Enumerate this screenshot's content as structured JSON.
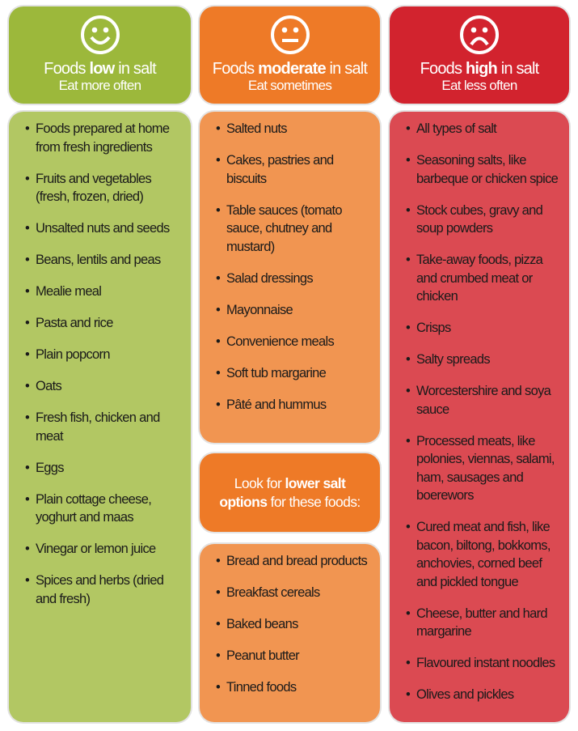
{
  "colors": {
    "low": "#9cb83b",
    "moderate": "#ee7a27",
    "high": "#d2232e"
  },
  "low": {
    "icon": "smiley-face-icon",
    "title_pre": "Foods ",
    "title_bold": "low",
    "title_post": " in  salt",
    "subtitle": "Eat more often",
    "items": [
      "Foods prepared at home from fresh ingredients",
      "Fruits and vegetables (fresh, frozen, dried)",
      "Unsalted nuts and seeds",
      "Beans, lentils and peas",
      "Mealie meal",
      "Pasta and rice",
      "Plain popcorn",
      "Oats",
      "Fresh fish, chicken and meat",
      "Eggs",
      "Plain cottage cheese, yoghurt and maas",
      "Vinegar or lemon juice",
      "Spices and herbs (dried and fresh)"
    ]
  },
  "moderate": {
    "icon": "neutral-face-icon",
    "title_pre": "Foods ",
    "title_bold": "moderate",
    "title_post": " in  salt",
    "subtitle": "Eat sometimes",
    "items": [
      "Salted nuts",
      "Cakes, pastries and biscuits",
      "Table sauces (tomato sauce, chutney and mustard)",
      "Salad dressings",
      "Mayonnaise",
      "Convenience meals",
      "Soft tub margarine",
      "Pâté and hummus"
    ],
    "callout": {
      "pre": "Look for ",
      "bold1": "lower salt",
      "bold2": "options",
      "post": " for these foods:"
    },
    "lower_salt_items": [
      "Bread and bread products",
      "Breakfast cereals",
      "Baked beans",
      "Peanut butter",
      "Tinned foods"
    ]
  },
  "high": {
    "icon": "sad-face-icon",
    "title_pre": "Foods ",
    "title_bold": "high",
    "title_post": " in  salt",
    "subtitle": "Eat less often",
    "items": [
      "All types of salt",
      "Seasoning salts, like barbeque or chicken spice",
      "Stock cubes, gravy and soup powders",
      "Take-away foods, pizza and crumbed meat or chicken",
      "Crisps",
      "Salty spreads",
      "Worcestershire and soya sauce",
      "Processed meats, like polonies, viennas, salami, ham, sausages and boerewors",
      "Cured meat and fish, like bacon, biltong, bokkoms, anchovies, corned beef and pickled tongue",
      "Cheese, butter and hard margarine",
      "Flavoured instant noodles",
      "Olives and pickles"
    ]
  }
}
